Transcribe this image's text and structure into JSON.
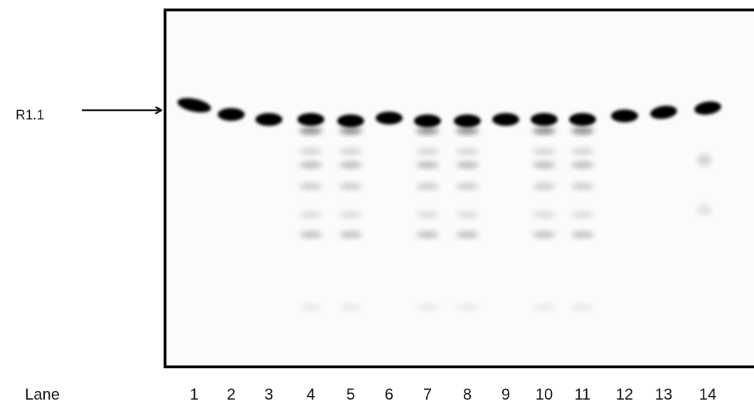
{
  "band_label": "R1.1",
  "lane_label": "Lane",
  "lanes": [
    "1",
    "2",
    "3",
    "4",
    "5",
    "6",
    "7",
    "8",
    "9",
    "10",
    "11",
    "12",
    "13",
    "14"
  ]
}
